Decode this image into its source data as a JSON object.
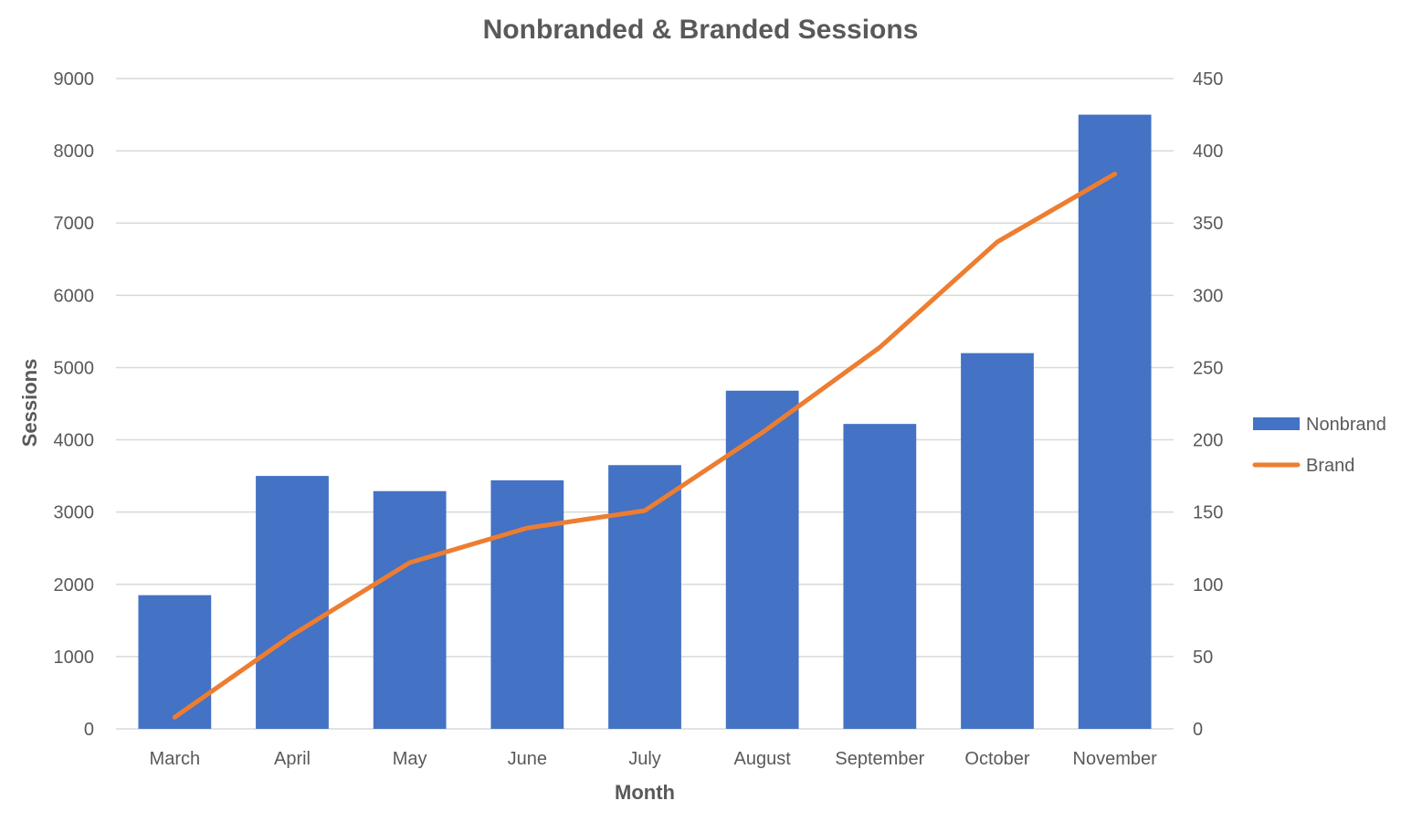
{
  "chart_data": {
    "type": "bar",
    "title": "Nonbranded & Branded Sessions",
    "xlabel": "Month",
    "ylabel": "Sessions",
    "y2label": "",
    "categories": [
      "March",
      "April",
      "May",
      "June",
      "July",
      "August",
      "September",
      "October",
      "November"
    ],
    "series": [
      {
        "name": "Nonbrand",
        "type": "bar",
        "axis": "left",
        "color": "#4472C4",
        "values": [
          1850,
          3500,
          3290,
          3440,
          3650,
          4680,
          4220,
          5200,
          8500
        ]
      },
      {
        "name": "Brand",
        "type": "line",
        "axis": "right",
        "color": "#ED7D31",
        "values": [
          8,
          65,
          115,
          139,
          151,
          205,
          264,
          337,
          384
        ]
      }
    ],
    "ylim": [
      0,
      9000
    ],
    "yticks": [
      "0",
      "1000",
      "2000",
      "3000",
      "4000",
      "5000",
      "6000",
      "7000",
      "8000",
      "9000"
    ],
    "y2lim": [
      0,
      450
    ],
    "y2ticks": [
      "0",
      "50",
      "100",
      "150",
      "200",
      "250",
      "300",
      "350",
      "400",
      "450"
    ],
    "grid": true,
    "legend_position": "right"
  }
}
